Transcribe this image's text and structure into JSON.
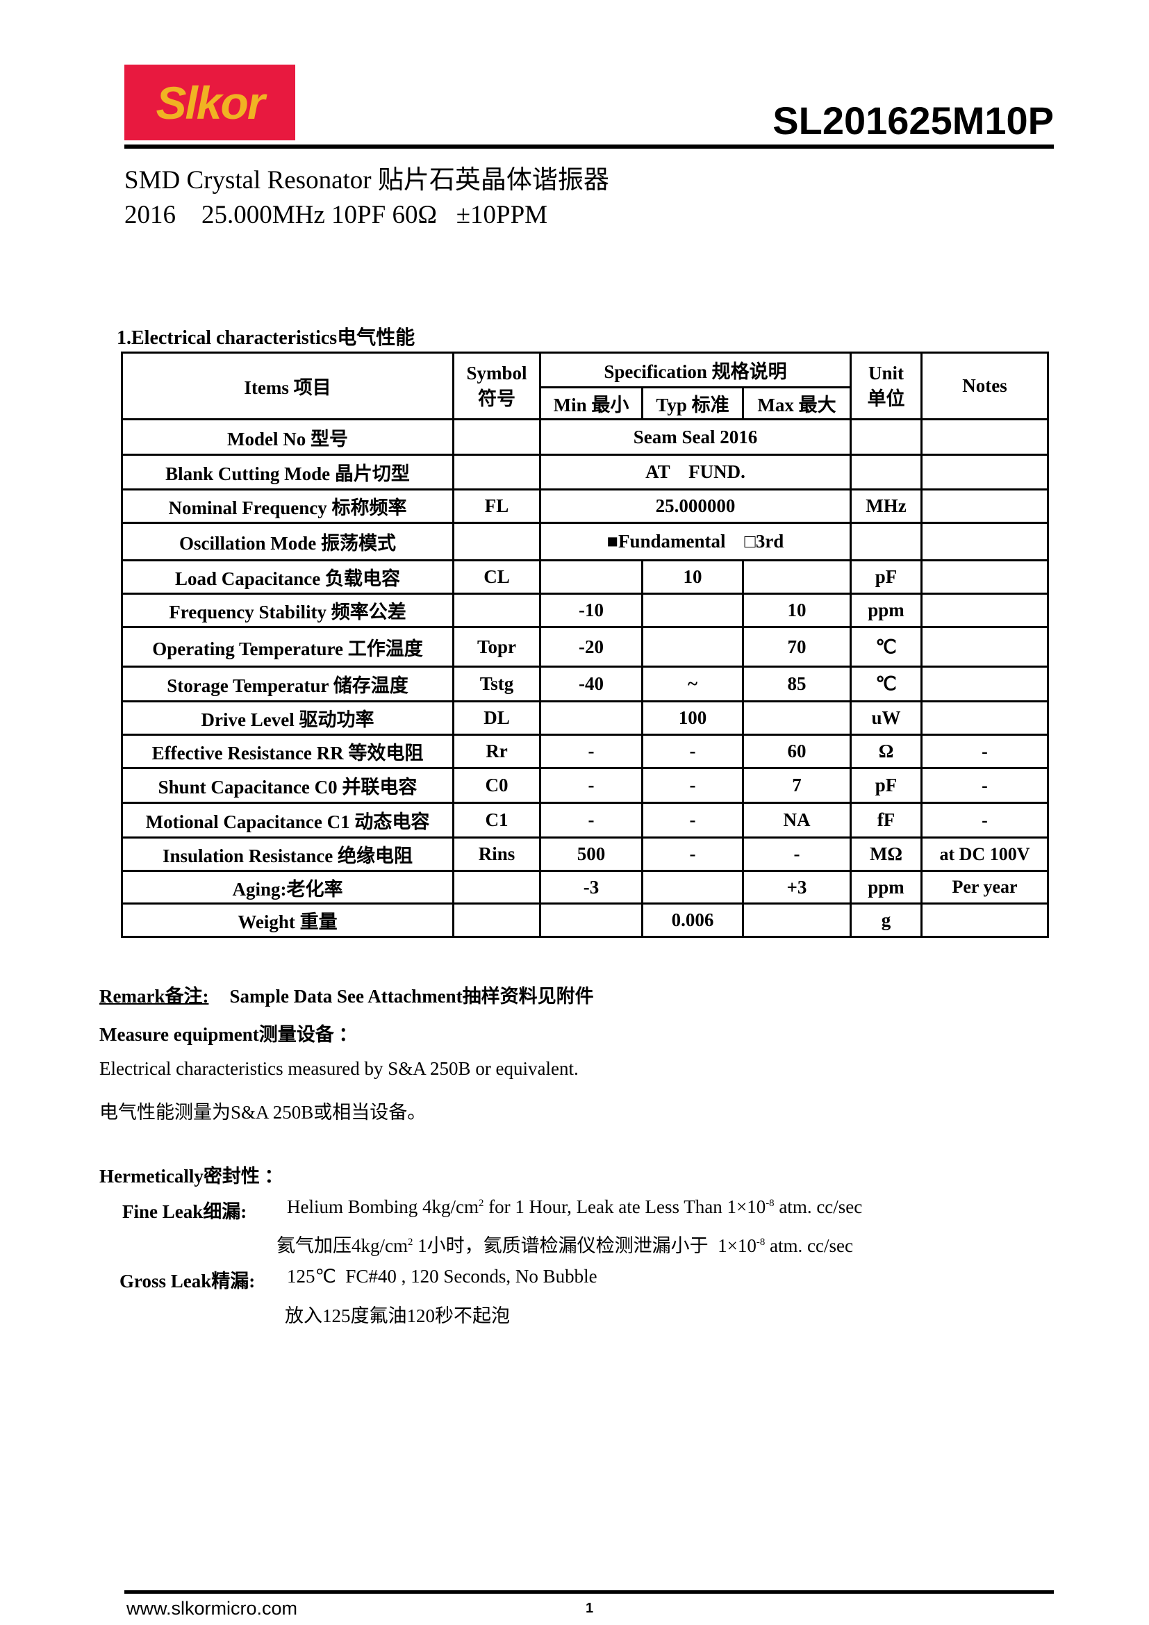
{
  "header": {
    "logo_text": "Slkor",
    "model_number": "SL201625M10P",
    "subtitle": "SMD Crystal Resonator 贴片石英晶体谐振器",
    "spec_line": "2016    25.000MHz 10PF 60Ω   ±10PPM"
  },
  "section_title": "1.Electrical characteristics电气性能",
  "table": {
    "headers": {
      "items": "Items 项目",
      "symbol_en": "Symbol",
      "symbol_cn": "符号",
      "specification": "Specification 规格说明",
      "min": "Min 最小",
      "typ": "Typ 标准",
      "max": "Max 最大",
      "unit_en": "Unit",
      "unit_cn": "单位",
      "notes": "Notes"
    },
    "rows": [
      {
        "item": "Model No 型号",
        "symbol": "",
        "merged": "Seam Seal 2016",
        "unit": "",
        "notes": ""
      },
      {
        "item": "Blank Cutting Mode 晶片切型",
        "symbol": "",
        "merged": "AT    FUND.",
        "unit": "",
        "notes": ""
      },
      {
        "item": "Nominal Frequency 标称频率",
        "symbol": "FL",
        "merged": "25.000000",
        "unit": "MHz",
        "notes": ""
      },
      {
        "item": "Oscillation Mode 振荡模式",
        "symbol": "",
        "merged": "■Fundamental    □3rd",
        "unit": "",
        "notes": ""
      },
      {
        "item": "Load Capacitance 负载电容",
        "symbol": "CL",
        "min": "",
        "typ": "10",
        "max": "",
        "unit": "pF",
        "notes": ""
      },
      {
        "item": "Frequency Stability 频率公差",
        "symbol": "",
        "min": "-10",
        "typ": "",
        "max": "10",
        "unit": "ppm",
        "notes": ""
      },
      {
        "item": "Operating Temperature 工作温度",
        "symbol": "Topr",
        "min": "-20",
        "typ": "",
        "max": "70",
        "unit": "℃",
        "notes": ""
      },
      {
        "item": "Storage Temperatur 储存温度",
        "symbol": "Tstg",
        "min": "-40",
        "typ": "~",
        "max": "85",
        "unit": "℃",
        "notes": ""
      },
      {
        "item": "Drive Level 驱动功率",
        "symbol": "DL",
        "min": "",
        "typ": "100",
        "max": "",
        "unit": "uW",
        "notes": ""
      },
      {
        "item": "Effective Resistance RR 等效电阻",
        "symbol": "Rr",
        "min": "-",
        "typ": "-",
        "max": "60",
        "unit": "Ω",
        "notes": "-"
      },
      {
        "item": "Shunt Capacitance C0 并联电容",
        "symbol": "C0",
        "min": "-",
        "typ": "-",
        "max": "7",
        "unit": "pF",
        "notes": "-"
      },
      {
        "item": "Motional Capacitance C1 动态电容",
        "symbol": "C1",
        "min": "-",
        "typ": "-",
        "max": "NA",
        "unit": "fF",
        "notes": "-"
      },
      {
        "item": "Insulation Resistance 绝缘电阻",
        "symbol": "Rins",
        "min": "500",
        "typ": "-",
        "max": "-",
        "unit": "MΩ",
        "notes": "at DC 100V"
      },
      {
        "item": "Aging:老化率",
        "symbol": "",
        "min": "-3",
        "typ": "",
        "max": "+3",
        "unit": "ppm",
        "notes": "Per year"
      },
      {
        "item": "Weight 重量",
        "symbol": "",
        "min": "",
        "typ": "0.006",
        "max": "",
        "unit": "g",
        "notes": ""
      }
    ]
  },
  "remark": {
    "label": "Remark备注:",
    "text": "Sample Data See Attachment抽样资料见附件"
  },
  "measure": {
    "label": "Measure equipment测量设备 ：",
    "line_en": "Electrical characteristics measured by S&A 250B or equivalent.",
    "line_cn": "电气性能测量为S&A 250B或相当设备。"
  },
  "hermetic": {
    "label": "Hermetically密封性 ：",
    "fine_label": "Fine Leak细漏:",
    "fine_en_a": "Helium Bombing 4kg/cm",
    "fine_en_b": " for 1 Hour, Leak ate Less Than 1×10",
    "fine_en_c": " atm. cc/sec",
    "fine_cn_a": "氦气加压4kg/cm",
    "fine_cn_b": " 1小时，氦质谱检漏仪检测泄漏小于  1×10",
    "fine_cn_c": " atm. cc/sec",
    "sup_2": "2",
    "sup_exp": "-8",
    "gross_label": "Gross Leak精漏:",
    "gross_en": "125℃  FC#40 , 120 Seconds, No Bubble",
    "gross_cn": "放入125度氟油120秒不起泡"
  },
  "footer": {
    "website": "www.slkormicro.com",
    "page_number": "1"
  },
  "colors": {
    "logo_bg": "#e8193f",
    "logo_text": "#f0b323"
  }
}
